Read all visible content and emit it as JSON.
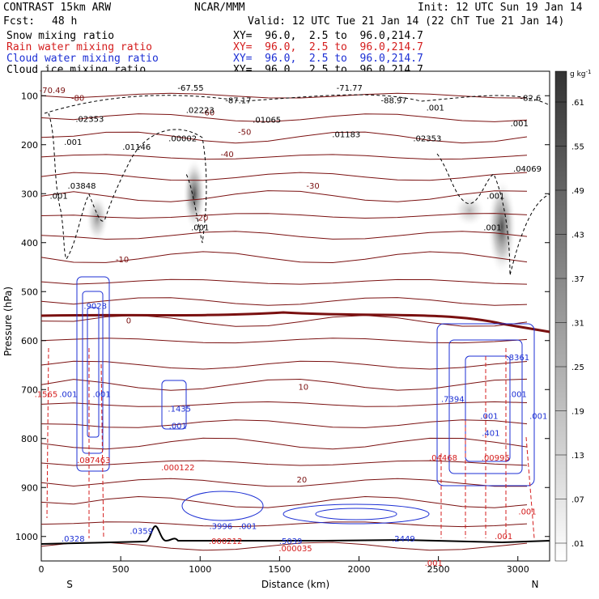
{
  "header": {
    "model": "CONTRAST 15km ARW",
    "org": "NCAR/MMM",
    "init": "Init: 12 UTC Sun 19 Jan 14",
    "fcst_label": "Fcst:",
    "fcst_value": "48 h",
    "valid": "Valid: 12 UTC Tue 21 Jan 14 (22 ChT Tue 21 Jan 14)"
  },
  "legend": [
    {
      "text": "Snow mixing ratio",
      "xy": "XY=  96.0,  2.5 to  96.0,214.7",
      "color": "#000000"
    },
    {
      "text": "Rain water mixing ratio",
      "xy": "XY=  96.0,  2.5 to  96.0,214.7",
      "color": "#d41c1c"
    },
    {
      "text": "Cloud water mixing ratio",
      "xy": "XY=  96.0,  2.5 to  96.0,214.7",
      "color": "#1c2fd4"
    },
    {
      "text": "Cloud ice mixing ratio",
      "xy": "XY=  96.0,  2.5 to  96.0,214.7",
      "color": "#000000"
    }
  ],
  "chart_data": {
    "type": "heatmap",
    "title": "Snow mixing ratio",
    "xlabel": "Distance (km)",
    "ylabel": "Pressure (hPa)",
    "xlim": [
      0,
      3200
    ],
    "ylim": [
      1050,
      50
    ],
    "x_ticks": [
      "0",
      "500",
      "1000",
      "1500",
      "2000",
      "2500",
      "3000"
    ],
    "y_ticks": [
      "100",
      "200",
      "300",
      "400",
      "500",
      "600",
      "700",
      "800",
      "900",
      "1000"
    ],
    "x_end_labels": {
      "left": "S",
      "right": "N"
    },
    "colorbar": {
      "unit": "g kg",
      "unit_sup": "-1",
      "ticks": [
        ".01",
        ".07",
        ".13",
        ".19",
        ".25",
        ".31",
        ".37",
        ".43",
        ".49",
        ".55",
        ".61"
      ]
    },
    "temperature_contours": [
      {
        "label": "-80",
        "p": 110,
        "x": 230
      },
      {
        "label": "-70.49",
        "p": 95,
        "x": 70
      },
      {
        "label": "-60",
        "p": 140,
        "x": 1050
      },
      {
        "label": "-50",
        "p": 180,
        "x": 1280
      },
      {
        "label": "-40",
        "p": 225,
        "x": 1170
      },
      {
        "label": "-30",
        "p": 290,
        "x": 1710
      },
      {
        "label": "-20",
        "p": 355,
        "x": 1010
      },
      {
        "label": "-10",
        "p": 440,
        "x": 510
      },
      {
        "label": "0",
        "p": 565,
        "x": 550
      },
      {
        "label": "10",
        "p": 700,
        "x": 1650
      },
      {
        "label": "20",
        "p": 890,
        "x": 1640
      }
    ],
    "annotations": {
      "black": [
        {
          "text": "-87.17",
          "p": 115,
          "x": 1240
        },
        {
          "text": "-67.55",
          "p": 90,
          "x": 940
        },
        {
          "text": "-71.77",
          "p": 90,
          "x": 1940
        },
        {
          "text": "-88.97",
          "p": 115,
          "x": 2220
        },
        {
          "text": "-82.6",
          "p": 110,
          "x": 3080
        },
        {
          "text": ".02353",
          "p": 153,
          "x": 305
        },
        {
          "text": ".02223",
          "p": 135,
          "x": 1000
        },
        {
          "text": ".01065",
          "p": 155,
          "x": 1420
        },
        {
          "text": ".01183",
          "p": 185,
          "x": 1920
        },
        {
          "text": ".02353",
          "p": 193,
          "x": 2430
        },
        {
          "text": ".01146",
          "p": 210,
          "x": 600
        },
        {
          "text": ".00002",
          "p": 193,
          "x": 890
        },
        {
          "text": ".04069",
          "p": 255,
          "x": 3060
        },
        {
          "text": ".03848",
          "p": 290,
          "x": 255
        },
        {
          "text": ".001",
          "p": 200,
          "x": 200
        },
        {
          "text": ".001",
          "p": 310,
          "x": 110
        },
        {
          "text": ".001",
          "p": 375,
          "x": 1000
        },
        {
          "text": ".001",
          "p": 310,
          "x": 2860
        },
        {
          "text": ".001",
          "p": 375,
          "x": 2840
        },
        {
          "text": ".001",
          "p": 130,
          "x": 2480
        },
        {
          "text": ".001",
          "p": 162,
          "x": 3010
        }
      ],
      "blue": [
        {
          "text": ".9028",
          "p": 535,
          "x": 340
        },
        {
          "text": ".1435",
          "p": 745,
          "x": 870
        },
        {
          "text": ".001",
          "p": 780,
          "x": 860
        },
        {
          "text": ".3996",
          "p": 985,
          "x": 1130
        },
        {
          "text": ".5039",
          "p": 1015,
          "x": 1570
        },
        {
          "text": ".2449",
          "p": 1010,
          "x": 2280
        },
        {
          "text": ".0328",
          "p": 1010,
          "x": 200
        },
        {
          "text": ".0359",
          "p": 995,
          "x": 630
        },
        {
          "text": ".7394",
          "p": 725,
          "x": 2590
        },
        {
          "text": ".401",
          "p": 795,
          "x": 2830
        },
        {
          "text": ".8361",
          "p": 640,
          "x": 3000
        },
        {
          "text": ".001",
          "p": 715,
          "x": 170
        },
        {
          "text": ".001",
          "p": 715,
          "x": 380
        },
        {
          "text": ".001",
          "p": 760,
          "x": 2820
        },
        {
          "text": ".001",
          "p": 715,
          "x": 3000
        },
        {
          "text": ".001",
          "p": 760,
          "x": 3130
        },
        {
          "text": ".001",
          "p": 985,
          "x": 1300
        }
      ],
      "red": [
        {
          "text": ".1565",
          "p": 715,
          "x": 30
        },
        {
          "text": ".087463",
          "p": 850,
          "x": 330
        },
        {
          "text": ".000122",
          "p": 865,
          "x": 860
        },
        {
          "text": ".000212",
          "p": 1015,
          "x": 1160
        },
        {
          "text": ".000035",
          "p": 1030,
          "x": 1600
        },
        {
          "text": ".04468",
          "p": 845,
          "x": 2530
        },
        {
          "text": ".00995",
          "p": 845,
          "x": 2860
        },
        {
          "text": ".001",
          "p": 1060,
          "x": 2470
        },
        {
          "text": ".001",
          "p": 1005,
          "x": 2910
        },
        {
          "text": ".001",
          "p": 955,
          "x": 3060
        }
      ]
    }
  }
}
